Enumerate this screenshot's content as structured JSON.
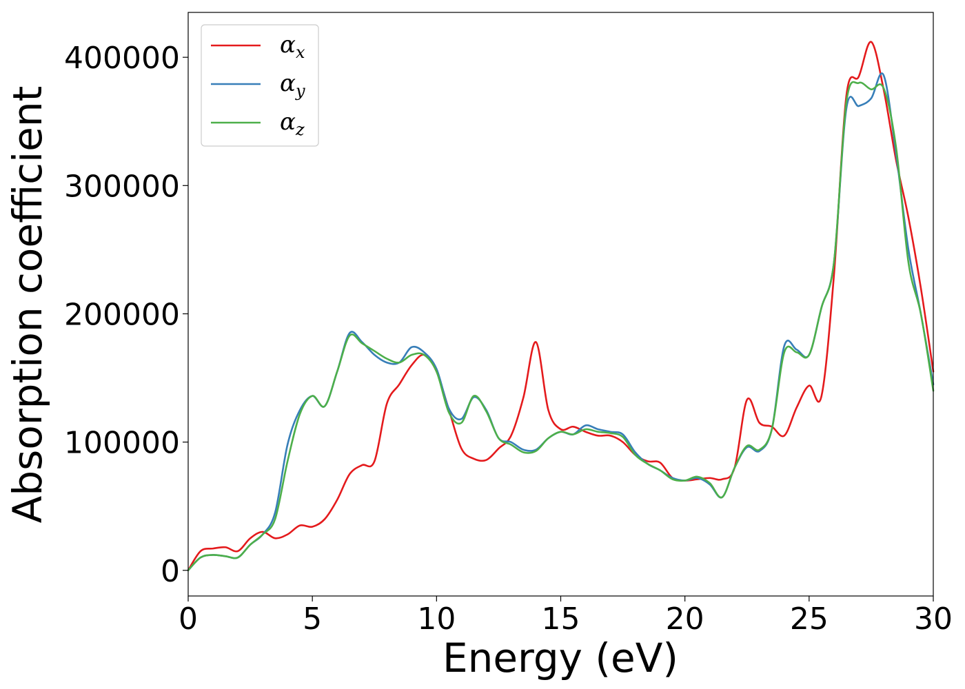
{
  "chart_data": {
    "type": "line",
    "title": "",
    "xlabel": "Energy (eV)",
    "ylabel": "Absorption coefficient",
    "xlim": [
      0,
      30
    ],
    "ylim": [
      -20000,
      435000
    ],
    "xticks": [
      0,
      5,
      10,
      15,
      20,
      25,
      30
    ],
    "yticks": [
      0,
      100000,
      200000,
      300000,
      400000
    ],
    "grid": false,
    "legend_position": "top-left",
    "series": [
      {
        "name": "αx",
        "symbol": "α",
        "subscript": "x",
        "color": "#e41a1c",
        "x": [
          0,
          0.5,
          1,
          1.5,
          2,
          2.5,
          3,
          3.5,
          4,
          4.5,
          5,
          5.5,
          6,
          6.5,
          7,
          7.5,
          8,
          8.5,
          9,
          9.5,
          10,
          10.5,
          11,
          11.5,
          12,
          12.5,
          13,
          13.5,
          14,
          14.5,
          15,
          15.5,
          16,
          16.5,
          17,
          17.5,
          18,
          18.5,
          19,
          19.5,
          20,
          20.5,
          21,
          21.5,
          22,
          22.5,
          23,
          23.5,
          24,
          24.5,
          25,
          25.5,
          26,
          26.5,
          27,
          27.5,
          28,
          28.5,
          29,
          29.5,
          30
        ],
        "values": [
          0,
          15000,
          17000,
          18000,
          15000,
          25000,
          30000,
          25000,
          28000,
          35000,
          34000,
          40000,
          55000,
          75000,
          82000,
          85000,
          130000,
          145000,
          160000,
          168000,
          155000,
          125000,
          95000,
          87000,
          86000,
          95000,
          105000,
          135000,
          178000,
          125000,
          110000,
          112000,
          108000,
          105000,
          105000,
          100000,
          90000,
          85000,
          84000,
          72000,
          70000,
          71000,
          72000,
          71000,
          80000,
          133000,
          115000,
          112000,
          105000,
          127000,
          144000,
          136000,
          230000,
          370000,
          385000,
          412000,
          375000,
          320000,
          275000,
          220000,
          155000
        ]
      },
      {
        "name": "αy",
        "symbol": "α",
        "subscript": "y",
        "color": "#377eb8",
        "x": [
          0,
          0.5,
          1,
          1.5,
          2,
          2.5,
          3,
          3.5,
          4,
          4.5,
          5,
          5.5,
          6,
          6.5,
          7,
          7.5,
          8,
          8.5,
          9,
          9.5,
          10,
          10.5,
          11,
          11.5,
          12,
          12.5,
          13,
          13.5,
          14,
          14.5,
          15,
          15.5,
          16,
          16.5,
          17,
          17.5,
          18,
          18.5,
          19,
          19.5,
          20,
          20.5,
          21,
          21.5,
          22,
          22.5,
          23,
          23.5,
          24,
          24.5,
          25,
          25.5,
          26,
          26.5,
          27,
          27.5,
          28,
          28.5,
          29,
          29.5,
          30
        ],
        "values": [
          0,
          10000,
          12000,
          11000,
          10000,
          20000,
          28000,
          45000,
          98000,
          125000,
          136000,
          128000,
          155000,
          185000,
          178000,
          168000,
          162000,
          162000,
          174000,
          170000,
          157000,
          126000,
          118000,
          135000,
          125000,
          103000,
          100000,
          94000,
          94000,
          103000,
          108000,
          106000,
          113000,
          110000,
          108000,
          106000,
          92000,
          83000,
          78000,
          72000,
          70000,
          72000,
          67000,
          57000,
          80000,
          96000,
          93000,
          110000,
          175000,
          172000,
          168000,
          205000,
          240000,
          360000,
          362000,
          368000,
          386000,
          325000,
          250000,
          200000,
          145000
        ]
      },
      {
        "name": "αz",
        "symbol": "α",
        "subscript": "z",
        "color": "#4daf4a",
        "x": [
          0,
          0.5,
          1,
          1.5,
          2,
          2.5,
          3,
          3.5,
          4,
          4.5,
          5,
          5.5,
          6,
          6.5,
          7,
          7.5,
          8,
          8.5,
          9,
          9.5,
          10,
          10.5,
          11,
          11.5,
          12,
          12.5,
          13,
          13.5,
          14,
          14.5,
          15,
          15.5,
          16,
          16.5,
          17,
          17.5,
          18,
          18.5,
          19,
          19.5,
          20,
          20.5,
          21,
          21.5,
          22,
          22.5,
          23,
          23.5,
          24,
          24.5,
          25,
          25.5,
          26,
          26.5,
          27,
          27.5,
          28,
          28.5,
          29,
          29.5,
          30
        ],
        "values": [
          0,
          10000,
          12000,
          11000,
          10000,
          20000,
          28000,
          40000,
          85000,
          122000,
          136000,
          128000,
          155000,
          183000,
          177000,
          171000,
          165000,
          162000,
          168000,
          168000,
          155000,
          123000,
          115000,
          136000,
          124000,
          103000,
          98000,
          92000,
          93000,
          103000,
          108000,
          106000,
          110000,
          108000,
          107000,
          104000,
          90000,
          83000,
          78000,
          71000,
          70000,
          73000,
          68000,
          57000,
          80000,
          97000,
          94000,
          110000,
          170000,
          170000,
          168000,
          205000,
          240000,
          365000,
          380000,
          375000,
          376000,
          330000,
          240000,
          200000,
          140000
        ]
      }
    ]
  }
}
